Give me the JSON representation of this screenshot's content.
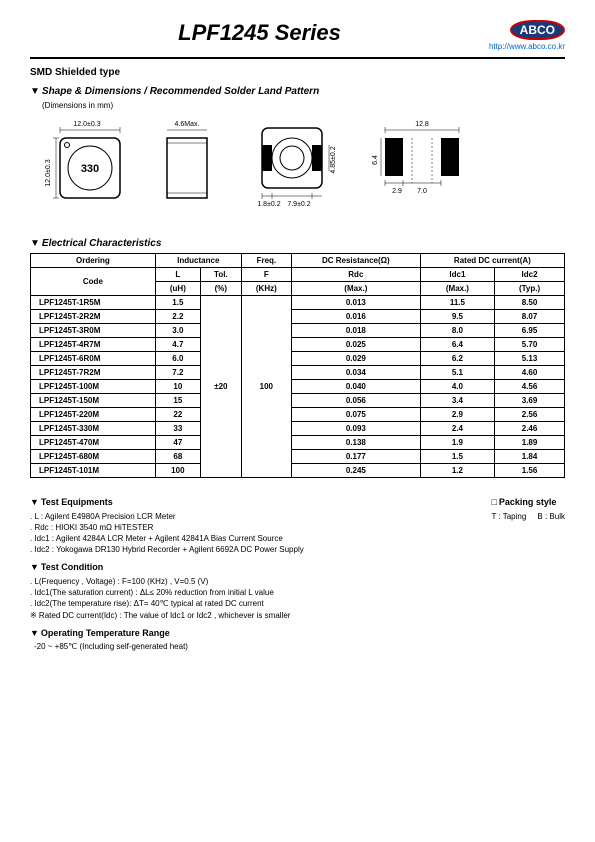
{
  "header": {
    "title": "LPF1245 Series",
    "logo_text": "ABCO",
    "url": "http://www.abco.co.kr"
  },
  "subtitle": "SMD Shielded type",
  "shape_section": "Shape & Dimensions / Recommended Solder Land Pattern",
  "dim_note": "(Dimensions in mm)",
  "diagram_labels": {
    "top_dim": "12.0±0.3",
    "side_dim": "12.0±0.3",
    "height": "4.6Max.",
    "bottom_h": "4.85±0.2",
    "bottom_w1": "1.8±0.2",
    "bottom_w2": "7.9±0.2",
    "land_w": "12.8",
    "land_h": "6.4",
    "land_p1": "2.9",
    "land_p2": "7.0",
    "marking": "330"
  },
  "elec_section": "Electrical Characteristics",
  "table": {
    "headers": {
      "ordering": "Ordering",
      "code": "Code",
      "inductance": "Inductance",
      "l": "L",
      "l_unit": "(uH)",
      "tol": "Tol.",
      "tol_unit": "(%)",
      "freq": "Freq.",
      "f": "F",
      "f_unit": "(KHz)",
      "dcr": "DC Resistance(Ω)",
      "rdc": "Rdc",
      "rdc_note": "(Max.)",
      "rated": "Rated DC current(A)",
      "idc1": "Idc1",
      "idc1_note": "(Max.)",
      "idc2": "Idc2",
      "idc2_note": "(Typ.)"
    },
    "tol_val": "±20",
    "freq_val": "100",
    "rows": [
      {
        "code": "LPF1245T-1R5M",
        "l": "1.5",
        "rdc": "0.013",
        "idc1": "11.5",
        "idc2": "8.50"
      },
      {
        "code": "LPF1245T-2R2M",
        "l": "2.2",
        "rdc": "0.016",
        "idc1": "9.5",
        "idc2": "8.07"
      },
      {
        "code": "LPF1245T-3R0M",
        "l": "3.0",
        "rdc": "0.018",
        "idc1": "8.0",
        "idc2": "6.95"
      },
      {
        "code": "LPF1245T-4R7M",
        "l": "4.7",
        "rdc": "0.025",
        "idc1": "6.4",
        "idc2": "5.70"
      },
      {
        "code": "LPF1245T-6R0M",
        "l": "6.0",
        "rdc": "0.029",
        "idc1": "6.2",
        "idc2": "5.13"
      },
      {
        "code": "LPF1245T-7R2M",
        "l": "7.2",
        "rdc": "0.034",
        "idc1": "5.1",
        "idc2": "4.60"
      },
      {
        "code": "LPF1245T-100M",
        "l": "10",
        "rdc": "0.040",
        "idc1": "4.0",
        "idc2": "4.56"
      },
      {
        "code": "LPF1245T-150M",
        "l": "15",
        "rdc": "0.056",
        "idc1": "3.4",
        "idc2": "3.69"
      },
      {
        "code": "LPF1245T-220M",
        "l": "22",
        "rdc": "0.075",
        "idc1": "2.9",
        "idc2": "2.56"
      },
      {
        "code": "LPF1245T-330M",
        "l": "33",
        "rdc": "0.093",
        "idc1": "2.4",
        "idc2": "2.46"
      },
      {
        "code": "LPF1245T-470M",
        "l": "47",
        "rdc": "0.138",
        "idc1": "1.9",
        "idc2": "1.89"
      },
      {
        "code": "LPF1245T-680M",
        "l": "68",
        "rdc": "0.177",
        "idc1": "1.5",
        "idc2": "1.84"
      },
      {
        "code": "LPF1245T-101M",
        "l": "100",
        "rdc": "0.245",
        "idc1": "1.2",
        "idc2": "1.56"
      }
    ]
  },
  "test_equipments": {
    "title": "Test Equipments",
    "lines": [
      ". L : Agilent E4980A Precision LCR Meter",
      ". Rdc : HIOKI 3540 mΩ HiTESTER",
      ". Idc1 : Agilent 4284A LCR Meter + Agilent 42841A Bias Current Source",
      ". Idc2 : Yokogawa DR130 Hybrid Recorder + Agilent 6692A DC Power Supply"
    ]
  },
  "packing": {
    "title": "Packing style",
    "t": "T : Taping",
    "b": "B : Bulk"
  },
  "test_condition": {
    "title": "Test Condition",
    "lines": [
      ". L(Frequency , Voltage) : F=100 (KHz) , V=0.5 (V)",
      ". Idc1(The saturation current) : ΔL≤ 20% reduction from initial L value",
      ". Idc2(The temperature rise): ΔT= 40℃ typical at rated DC current",
      "※ Rated DC current(Idc) : The value of Idc1 or Idc2 , whichever is smaller"
    ]
  },
  "temp_range": {
    "title": "Operating Temperature Range",
    "text": "-20 ~ +85℃ (Including self-generated heat)"
  }
}
